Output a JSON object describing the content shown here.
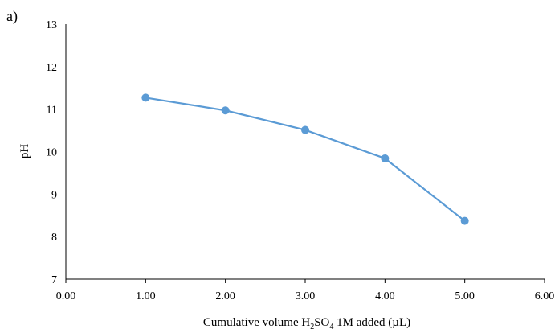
{
  "panel_label": "a)",
  "chart_data": {
    "type": "line",
    "title": "",
    "xlabel": {
      "prefix": "Cumulative volume H",
      "sub1": "2",
      "mid": "SO",
      "sub2": "4",
      "suffix": " 1M added (µL)"
    },
    "ylabel": "pH",
    "xlim": [
      0,
      6
    ],
    "ylim": [
      7,
      13
    ],
    "x_ticks": [
      0,
      1,
      2,
      3,
      4,
      5,
      6
    ],
    "x_tick_labels": [
      "0.00",
      "1.00",
      "2.00",
      "3.00",
      "4.00",
      "5.00",
      "6.00"
    ],
    "y_ticks": [
      7,
      8,
      9,
      10,
      11,
      12,
      13
    ],
    "y_tick_labels": [
      "7",
      "8",
      "9",
      "10",
      "11",
      "12",
      "13"
    ],
    "grid": false,
    "legend": "none",
    "series": [
      {
        "x": [
          1,
          2,
          3,
          4,
          5
        ],
        "y": [
          11.27,
          10.97,
          10.51,
          9.84,
          8.37
        ],
        "color": "#5b9bd5",
        "marker": "circle"
      }
    ]
  }
}
